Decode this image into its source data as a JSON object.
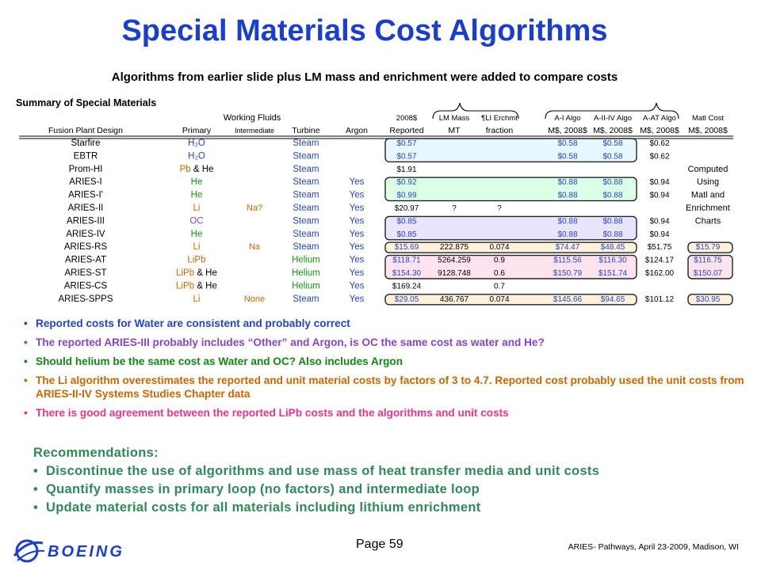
{
  "title": "Special Materials Cost Algorithms",
  "subtitle": "Algorithms from earlier slide plus LM mass and enrichment were added to compare costs",
  "summary_title": "Summary of Special Materials",
  "table": {
    "group_headers": {
      "working_fluids": "Working Fluids"
    },
    "header_top": [
      "2008$",
      "LM Mass",
      "¶LI Erchmt",
      "A-I Algo",
      "A-II-IV Algo",
      "A-AT Algo",
      "Matl Cost"
    ],
    "columns": [
      "Fusion Plant Design",
      "Primary",
      "Intermediate",
      "Turbine",
      "Argon",
      "Reported",
      "MT",
      "fraction",
      "M$, 2008$",
      "M$, 2008$",
      "M$, 2008$",
      "M$, 2008$"
    ],
    "rows": [
      {
        "design": "Starfire",
        "primary": "H₂O",
        "intermediate": "",
        "turbine": "Steam",
        "argon": "",
        "reported": "$0.57",
        "lm": "",
        "frac": "",
        "ai": "$0.58",
        "aiv": "$0.58",
        "aat": "$0.62",
        "matl": ""
      },
      {
        "design": "EBTR",
        "primary": "H₂O",
        "intermediate": "",
        "turbine": "Steam",
        "argon": "",
        "reported": "$0.57",
        "lm": "",
        "frac": "",
        "ai": "$0.58",
        "aiv": "$0.58",
        "aat": "$0.62",
        "matl": ""
      },
      {
        "design": "Prom-HI",
        "primary": "Pb & He",
        "intermediate": "",
        "turbine": "Steam",
        "argon": "",
        "reported": "$1.91",
        "lm": "",
        "frac": "",
        "ai": "",
        "aiv": "",
        "aat": "",
        "matl": "Computed"
      },
      {
        "design": "ARIES-I",
        "primary": "He",
        "intermediate": "",
        "turbine": "Steam",
        "argon": "Yes",
        "reported": "$0.92",
        "lm": "",
        "frac": "",
        "ai": "$0.88",
        "aiv": "$0.88",
        "aat": "$0.94",
        "matl": "Using"
      },
      {
        "design": "ARIES-I'",
        "primary": "He",
        "intermediate": "",
        "turbine": "Steam",
        "argon": "Yes",
        "reported": "$0.99",
        "lm": "",
        "frac": "",
        "ai": "$0.88",
        "aiv": "$0.88",
        "aat": "$0.94",
        "matl": "Matl and"
      },
      {
        "design": "ARIES-II",
        "primary": "Li",
        "intermediate": "Na?",
        "turbine": "Steam",
        "argon": "Yes",
        "reported": "$20.97",
        "lm": "?",
        "frac": "?",
        "ai": "",
        "aiv": "",
        "aat": "",
        "matl": "Enrichment"
      },
      {
        "design": "ARIES-III",
        "primary": "OC",
        "intermediate": "",
        "turbine": "Steam",
        "argon": "Yes",
        "reported": "$0.85",
        "lm": "",
        "frac": "",
        "ai": "$0.88",
        "aiv": "$0.88",
        "aat": "$0.94",
        "matl": "Charts"
      },
      {
        "design": "ARIES-IV",
        "primary": "He",
        "intermediate": "",
        "turbine": "Steam",
        "argon": "Yes",
        "reported": "$0.85",
        "lm": "",
        "frac": "",
        "ai": "$0.88",
        "aiv": "$0.88",
        "aat": "$0.94",
        "matl": ""
      },
      {
        "design": "ARIES-RS",
        "primary": "Li",
        "intermediate": "Na",
        "turbine": "Steam",
        "argon": "Yes",
        "reported": "$15.69",
        "lm": "222.875",
        "frac": "0.074",
        "ai": "$74.47",
        "aiv": "$48.45",
        "aat": "$51.75",
        "matl": "$15.79"
      },
      {
        "design": "ARIES-AT",
        "primary": "LiPb",
        "intermediate": "",
        "turbine": "Helium",
        "argon": "Yes",
        "reported": "$118.71",
        "lm": "5264.259",
        "frac": "0.9",
        "ai": "$115.56",
        "aiv": "$116.30",
        "aat": "$124.17",
        "matl": "$116.75"
      },
      {
        "design": "ARIES-ST",
        "primary": "LiPb & He",
        "intermediate": "",
        "turbine": "Helium",
        "argon": "Yes",
        "reported": "$154.30",
        "lm": "9128.748",
        "frac": "0.6",
        "ai": "$150.79",
        "aiv": "$151.74",
        "aat": "$162.00",
        "matl": "$150.07"
      },
      {
        "design": "ARIES-CS",
        "primary": "LiPb & He",
        "intermediate": "",
        "turbine": "Helium",
        "argon": "Yes",
        "reported": "$169.24",
        "lm": "",
        "frac": "0.7",
        "ai": "",
        "aiv": "",
        "aat": "",
        "matl": ""
      },
      {
        "design": "ARIES-SPPS",
        "primary": "Li",
        "intermediate": "None",
        "turbine": "Steam",
        "argon": "Yes",
        "reported": "$29.05",
        "lm": "436.767",
        "frac": "0.074",
        "ai": "$145.66",
        "aiv": "$94.65",
        "aat": "$101.12",
        "matl": "$30.95"
      }
    ],
    "colors": {
      "water": "#2244cc",
      "orange": "#cc6600",
      "green": "#119911",
      "purple": "#8844cc",
      "pink": "#ee3388",
      "blue_fill": "#e6f7ff",
      "green_fill": "#dcffe8",
      "purple_fill": "#ebe4ff",
      "pink_fill": "#ffe4f0",
      "orange_fill": "#fff1dc"
    }
  },
  "bullets": [
    {
      "text": "Reported costs for Water are consistent and probably correct",
      "color": "#2244cc"
    },
    {
      "text": "The reported ARIES-III probably includes “Other” and Argon, is OC the same cost as water and He?",
      "color": "#8844cc"
    },
    {
      "text": "Should helium be the same cost as Water and OC? Also includes Argon",
      "color": "#118811"
    },
    {
      "text": "The Li algorithm overestimates the reported and unit material costs by factors of 3 to 4.7. Reported cost probably used the unit costs from ARIES-II-IV Systems Studies Chapter data",
      "color": "#cc6600"
    },
    {
      "text": "There is good agreement between the reported LiPb costs and the algorithms and unit costs",
      "color": "#ee3388"
    }
  ],
  "recommendations": {
    "heading": "Recommendations:",
    "items": [
      "Discontinue the use of algorithms and use mass of heat transfer media and unit costs",
      "Quantify masses in primary loop (no factors) and intermediate loop",
      "Update material costs for all materials including lithium enrichment"
    ]
  },
  "footer": {
    "page": "Page 59",
    "text": "ARIES- Pathways, April 23-2009, Madison, WI",
    "logo": "BOEING"
  }
}
